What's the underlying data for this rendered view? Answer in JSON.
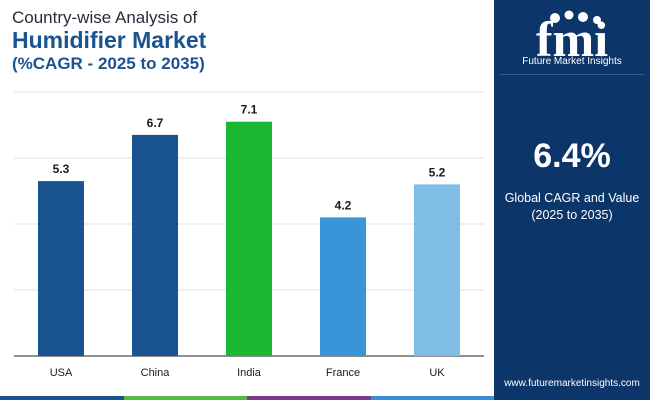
{
  "header": {
    "line1": "Country-wise Analysis of",
    "line2": "Humidifier Market",
    "line3": "(%CAGR - 2025 to 2035)"
  },
  "sidebar": {
    "brand_letters": "fmi",
    "brand_name": "Future Market Insights",
    "cagr_value": "6.4%",
    "cagr_label_line1": "Global CAGR and Value",
    "cagr_label_line2": "(2025 to 2035)",
    "website": "www.futuremarketinsights.com",
    "colors": {
      "panel": "#0c3569",
      "text": "#ffffff"
    }
  },
  "chart_data": {
    "type": "bar",
    "categories": [
      "USA",
      "China",
      "India",
      "France",
      "UK"
    ],
    "values": [
      5.3,
      6.7,
      7.1,
      4.2,
      5.2
    ],
    "value_labels": [
      "5.3",
      "6.7",
      "7.1",
      "4.2",
      "5.2"
    ],
    "colors": [
      "#1a5490",
      "#1a5490",
      "#1bb833",
      "#3895d8",
      "#7fbce6"
    ],
    "ylim": [
      0,
      8
    ],
    "grid": true,
    "title": "",
    "xlabel": "",
    "ylabel": ""
  },
  "footer_colors": [
    "#1a5490",
    "#56b947",
    "#7b3a8c",
    "#3b8ed6"
  ]
}
